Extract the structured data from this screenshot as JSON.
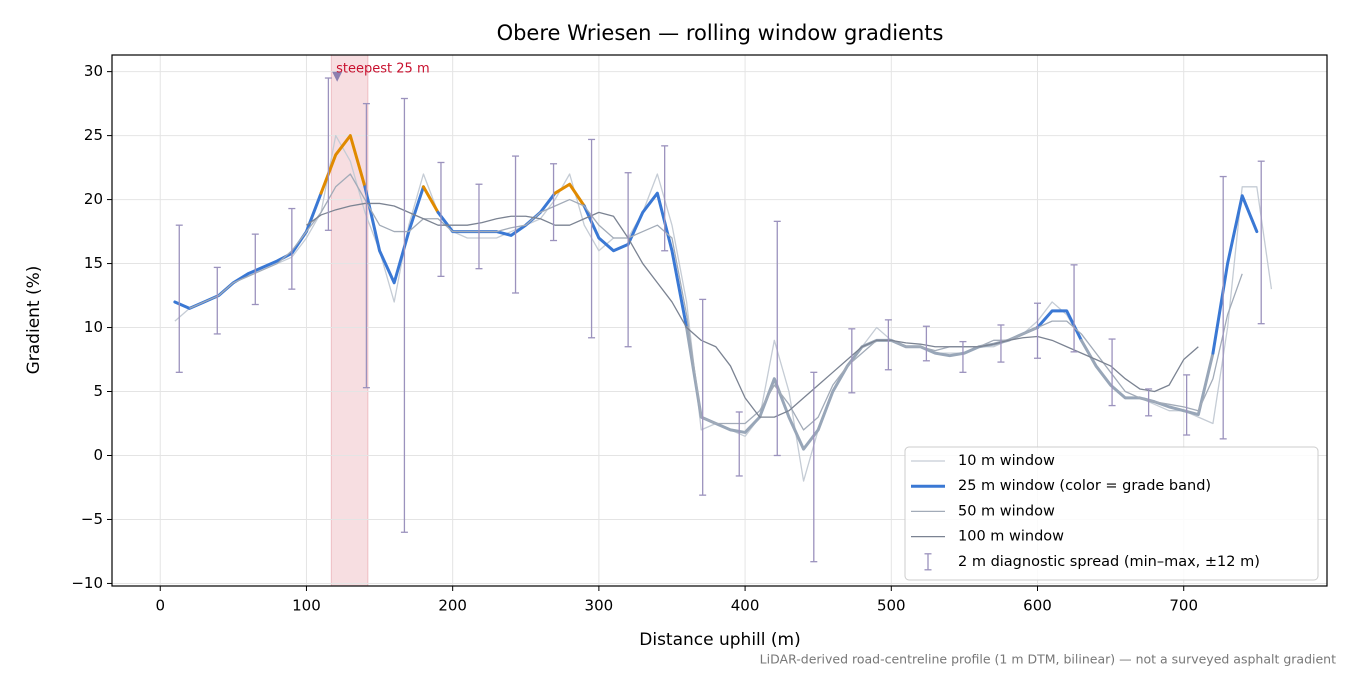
{
  "chart_data": {
    "type": "line",
    "title": "Obere Wriesen — rolling window gradients",
    "x_label": "Distance uphill (m)",
    "y_label": "Gradient (%)",
    "footnote": "LiDAR-derived road-centreline profile (1 m DTM, bilinear) — not a surveyed asphalt gradient",
    "xlim": [
      -33,
      798
    ],
    "ylim": [
      -10.2,
      31.3
    ],
    "xticks": [
      0,
      100,
      200,
      300,
      400,
      500,
      600,
      700
    ],
    "yticks": [
      {
        "value": -10,
        "label": "−10"
      },
      {
        "value": -5,
        "label": "−5"
      },
      0,
      5,
      10,
      15,
      20,
      25,
      30
    ],
    "grid": true,
    "legend": "lower right",
    "x": [
      10,
      20,
      30,
      40,
      50,
      60,
      70,
      80,
      90,
      100,
      110,
      120,
      130,
      140,
      150,
      160,
      170,
      180,
      190,
      200,
      210,
      220,
      230,
      240,
      250,
      260,
      270,
      280,
      290,
      300,
      310,
      320,
      330,
      340,
      350,
      360,
      370,
      380,
      390,
      400,
      410,
      420,
      430,
      440,
      450,
      460,
      470,
      480,
      490,
      500,
      510,
      520,
      530,
      540,
      550,
      560,
      570,
      580,
      590,
      600,
      610,
      620,
      630,
      640,
      650,
      660,
      670,
      680,
      690,
      700,
      710,
      720,
      730,
      740,
      750,
      760
    ],
    "series": [
      {
        "name": "10 m window",
        "color": "#c5ccd5",
        "width": 1.3,
        "values": [
          10.5,
          11.5,
          12,
          12.5,
          13.5,
          14,
          14.5,
          15,
          15.5,
          17,
          19,
          25,
          23,
          19,
          16,
          12,
          18,
          22,
          19,
          17.5,
          17,
          17,
          17,
          17.5,
          18,
          18.5,
          20,
          22,
          18,
          16,
          17,
          17,
          19,
          22,
          18,
          12,
          2,
          2.5,
          2,
          1.5,
          3,
          9,
          5,
          -2,
          2,
          5,
          7,
          8.5,
          10,
          9,
          8.5,
          8.5,
          8,
          8,
          8,
          8.5,
          8.5,
          9,
          9.5,
          10.5,
          12,
          11,
          9,
          7,
          5.5,
          4.5,
          4.5,
          4,
          3.5,
          3.5,
          3,
          2.5,
          10,
          21,
          21,
          13
        ]
      },
      {
        "name": "25 m window (color = grade band)",
        "color": "#3a78d4",
        "width": 3,
        "banded": true,
        "values": [
          12,
          11.5,
          12,
          12.5,
          13.5,
          14.2,
          14.7,
          15.2,
          15.8,
          17.5,
          20.5,
          23.5,
          25,
          21,
          16,
          13.5,
          17.5,
          21,
          19,
          17.5,
          17.5,
          17.5,
          17.5,
          17.2,
          18,
          19,
          20.5,
          21.2,
          19.5,
          17,
          16,
          16.5,
          19,
          20.5,
          16,
          10,
          3,
          2.5,
          2,
          1.8,
          3,
          6,
          3,
          0.5,
          2,
          5,
          7,
          8.5,
          9,
          9,
          8.5,
          8.5,
          8,
          7.8,
          8,
          8.5,
          8.7,
          9,
          9.5,
          10,
          11.3,
          11.3,
          9,
          7,
          5.5,
          4.5,
          4.5,
          4.2,
          3.8,
          3.5,
          3.2,
          8,
          15,
          20.3,
          17.5,
          null
        ]
      },
      {
        "name": "50 m window",
        "color": "#a2abb8",
        "width": 1.3,
        "values": [
          null,
          11.5,
          12,
          12.5,
          13.5,
          14,
          14.5,
          15,
          16,
          17.5,
          19,
          21,
          22,
          20,
          18,
          17.5,
          17.5,
          18.5,
          18.5,
          17.5,
          17.5,
          17.5,
          17.5,
          17.8,
          18,
          19,
          19.5,
          20,
          19.5,
          18,
          17,
          17,
          17.5,
          18,
          17,
          11,
          3,
          2.5,
          2.5,
          2.5,
          3.5,
          5.5,
          4,
          2,
          3,
          5.5,
          7,
          8,
          9,
          9,
          8.5,
          8.5,
          8.2,
          8.5,
          8.5,
          8.5,
          9,
          9,
          9.5,
          10,
          10.5,
          10.5,
          9.5,
          8,
          6.5,
          5,
          4.5,
          4.2,
          4,
          3.8,
          3.5,
          6,
          11,
          14.2,
          null,
          null
        ]
      },
      {
        "name": "100 m window",
        "color": "#7b8392",
        "width": 1.3,
        "values": [
          null,
          null,
          null,
          null,
          null,
          null,
          null,
          null,
          null,
          18,
          18.8,
          19.2,
          19.5,
          19.7,
          19.7,
          19.5,
          19,
          18.5,
          18,
          18,
          18,
          18.2,
          18.5,
          18.7,
          18.7,
          18.5,
          18,
          18,
          18.5,
          19,
          18.7,
          17,
          15,
          13.5,
          12,
          10,
          9,
          8.5,
          7,
          4.5,
          3,
          3,
          3.5,
          4.5,
          5.5,
          6.5,
          7.5,
          8.5,
          9,
          9,
          8.8,
          8.7,
          8.5,
          8.5,
          8.5,
          8.5,
          8.7,
          9,
          9.2,
          9.3,
          9,
          8.5,
          8,
          7.5,
          7,
          6,
          5.2,
          5,
          5.5,
          7.5,
          8.5,
          null,
          null,
          null,
          null,
          null
        ]
      }
    ],
    "grade_band_edges": [
      10,
      20,
      25
    ],
    "grade_band_colors": [
      "#98a6b8",
      "#3a78d4",
      "#e08a00",
      "#c8102e"
    ],
    "error_bars": {
      "name": "2 m diagnostic spread (min–max, ±12 m)",
      "color": "#9b92bd",
      "x": [
        13,
        39,
        65,
        90,
        115,
        141,
        167,
        192,
        218,
        243,
        269,
        295,
        320,
        345,
        371,
        396,
        422,
        447,
        473,
        498,
        524,
        549,
        575,
        600,
        625,
        651,
        676,
        702,
        727,
        753
      ],
      "low": [
        6.5,
        9.5,
        11.8,
        13,
        17.6,
        5.3,
        -6,
        14,
        14.6,
        12.7,
        16.8,
        9.2,
        8.5,
        16,
        -3.1,
        -1.6,
        0,
        -8.3,
        4.9,
        6.7,
        7.4,
        6.5,
        7.3,
        7.6,
        8.1,
        3.9,
        3.1,
        1.6,
        1.3,
        10.3
      ],
      "high": [
        18,
        14.7,
        17.3,
        19.3,
        29.5,
        27.5,
        27.9,
        22.9,
        21.2,
        23.4,
        22.8,
        24.7,
        22.1,
        24.2,
        12.2,
        3.4,
        18.3,
        6.5,
        9.9,
        10.6,
        10.1,
        8.9,
        10.2,
        11.9,
        14.9,
        9.1,
        5.2,
        6.3,
        21.8,
        23
      ]
    },
    "highlight": {
      "x": [
        117,
        142
      ],
      "color": "#e8a0a8",
      "marker": [
        121,
        29.6
      ],
      "marker_color": "#8d80b0",
      "label": "steepest 25 m",
      "label_color": "#c8102e"
    }
  }
}
